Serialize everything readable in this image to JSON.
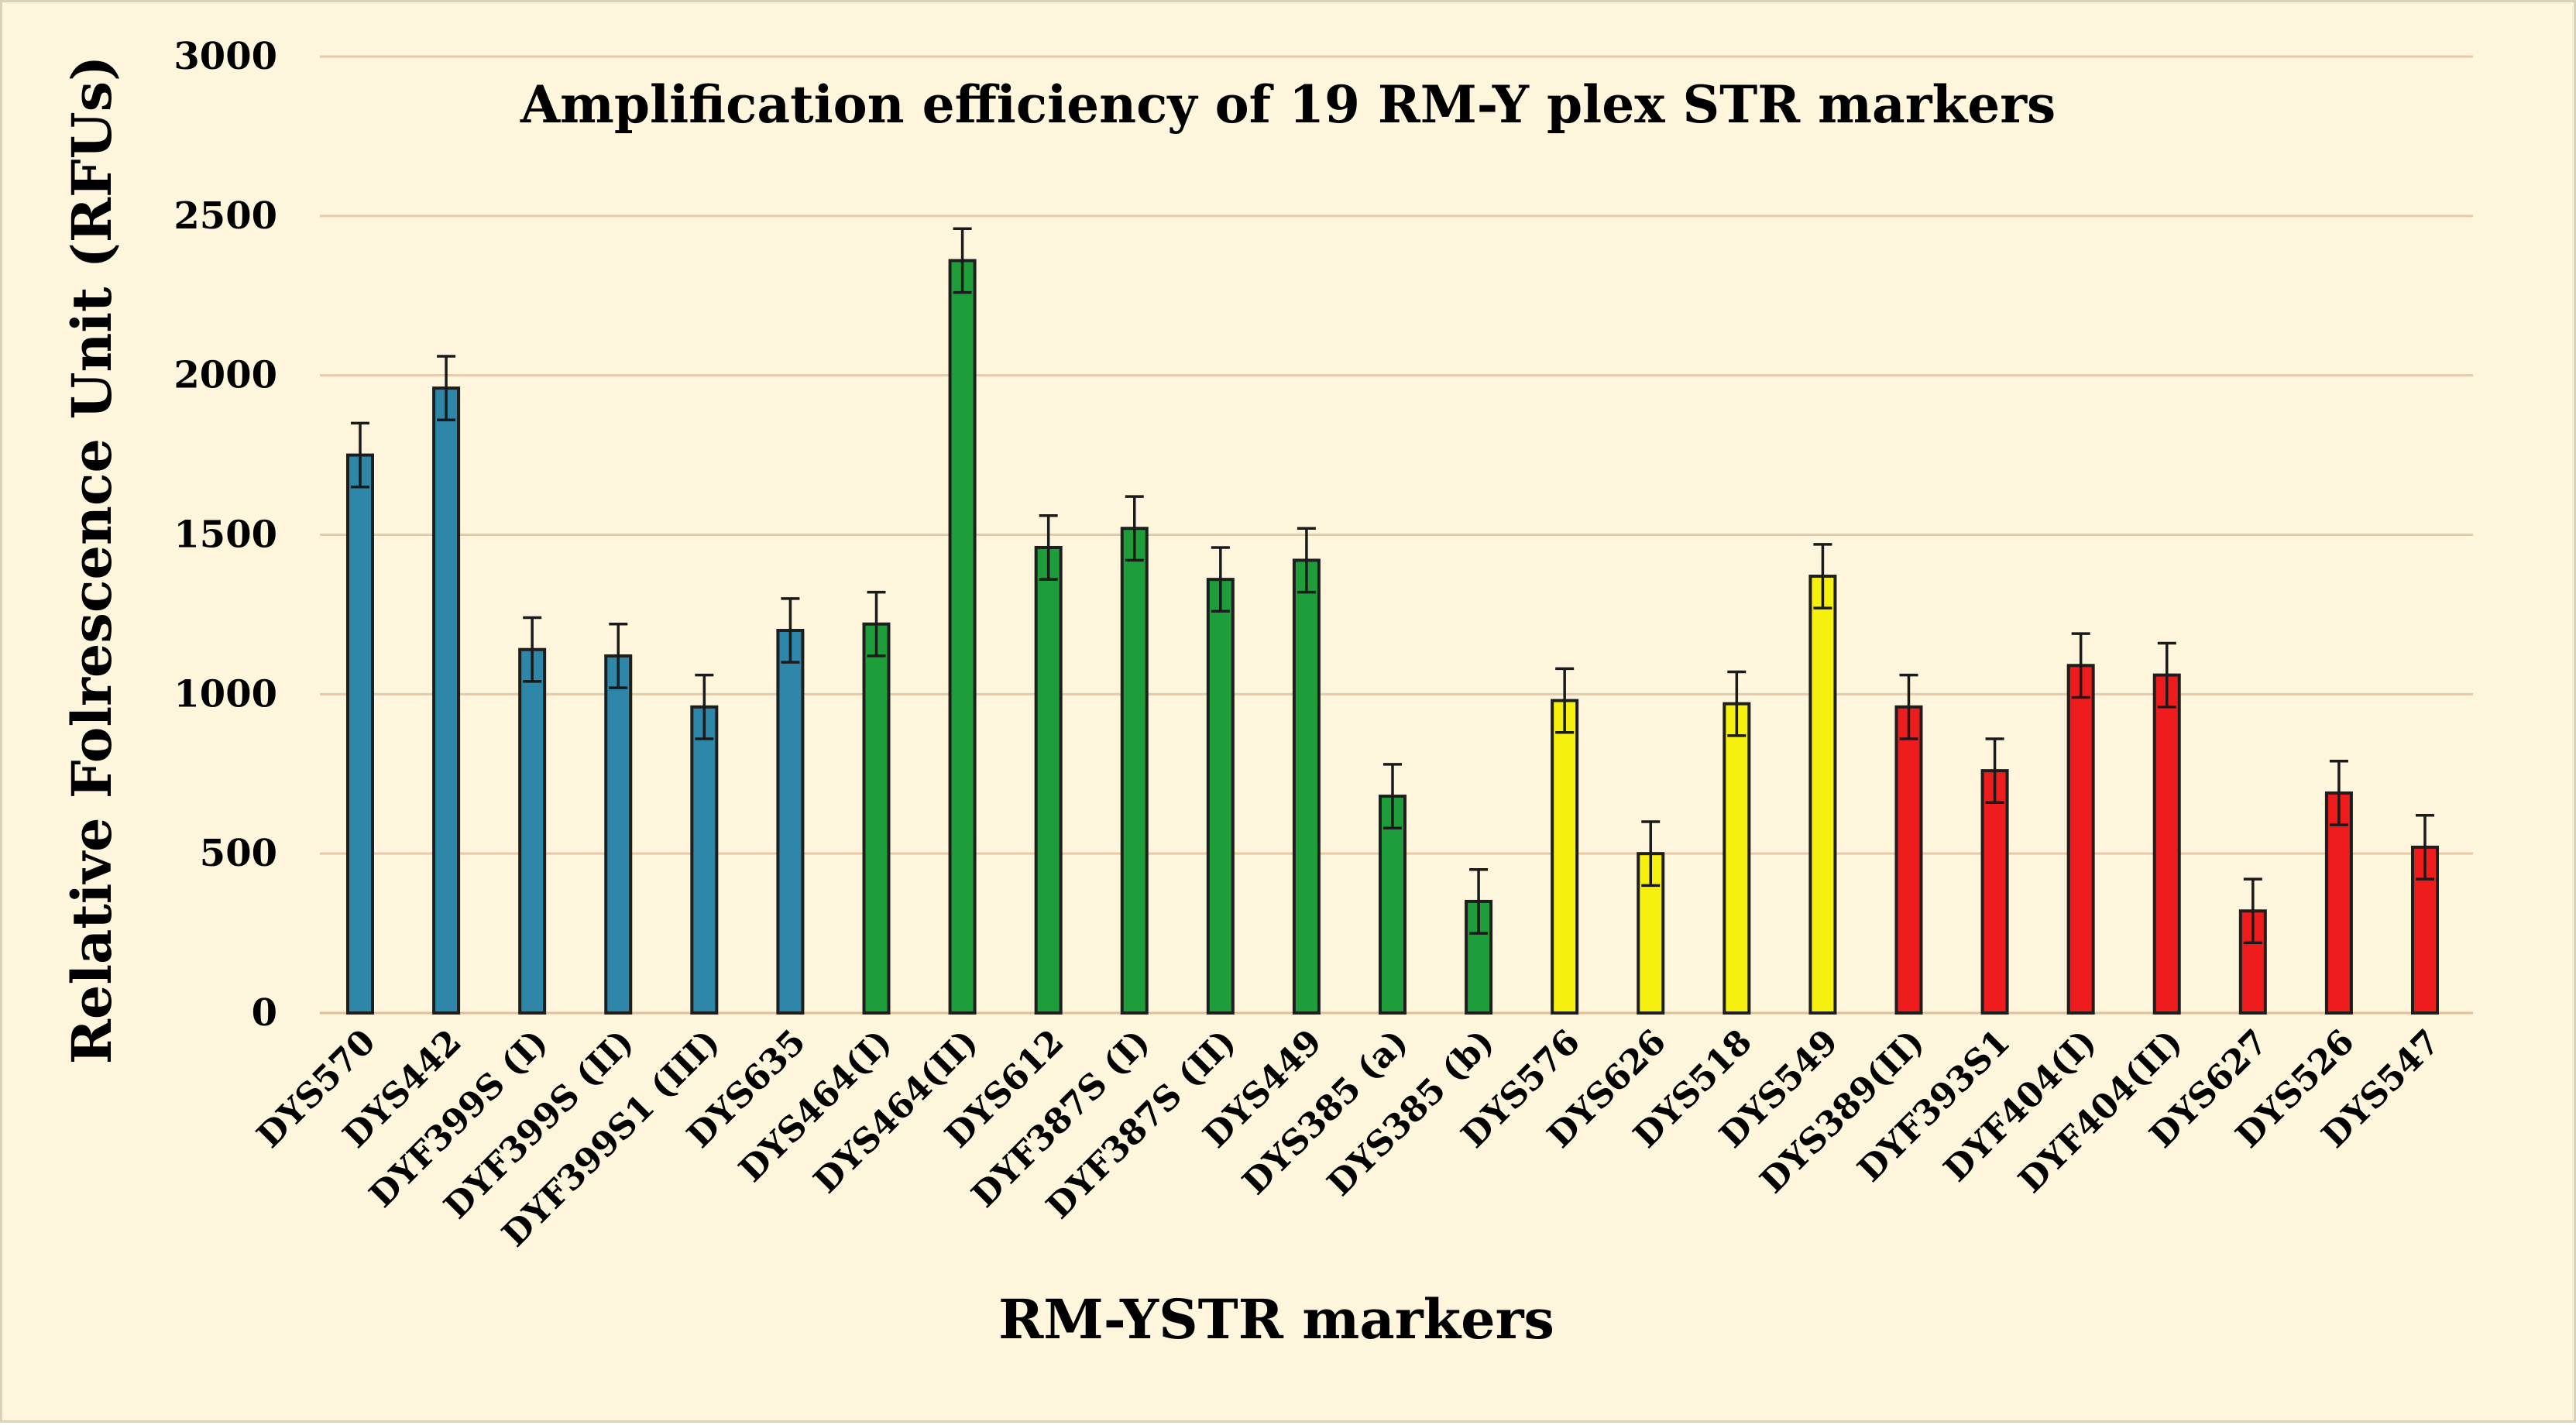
{
  "chart_data": {
    "type": "bar",
    "title": "Amplification efficiency of 19 RM-Y plex STR markers",
    "xlabel": "RM-YSTR markers",
    "ylabel": "Relative Folrescence Unit (RFUs)",
    "ylim": [
      0,
      3000
    ],
    "yticks": [
      0,
      500,
      1000,
      1500,
      2000,
      2500,
      3000
    ],
    "grid": true,
    "legend": "none",
    "categories": [
      "DYS570",
      "DYS442",
      "DYF399S (I)",
      "DYF399S (II)",
      "DYF399S1 (III)",
      "DYS635",
      "DYS464(I)",
      "DYS464(II)",
      "DYS612",
      "DYF387S (I)",
      "DYF387S (II)",
      "DYS449",
      "DYS385 (a)",
      "DYS385 (b)",
      "DYS576",
      "DYS626",
      "DYS518",
      "DYS549",
      "DYS389(II)",
      "DYF393S1",
      "DYF404(I)",
      "DYF404(II)",
      "DYS627",
      "DYS526",
      "DYS547"
    ],
    "values": [
      1750,
      1960,
      1140,
      1120,
      960,
      1200,
      1220,
      2360,
      1460,
      1520,
      1360,
      1420,
      680,
      350,
      980,
      500,
      970,
      1370,
      960,
      760,
      1090,
      1060,
      320,
      690,
      520
    ],
    "error": [
      100,
      100,
      100,
      100,
      100,
      100,
      100,
      100,
      100,
      100,
      100,
      100,
      100,
      100,
      100,
      100,
      100,
      100,
      100,
      100,
      100,
      100,
      100,
      100,
      100
    ],
    "colors": [
      "#2e86a8",
      "#2e86a8",
      "#2e86a8",
      "#2e86a8",
      "#2e86a8",
      "#2e86a8",
      "#1e9e3a",
      "#1e9e3a",
      "#1e9e3a",
      "#1e9e3a",
      "#1e9e3a",
      "#1e9e3a",
      "#1e9e3a",
      "#1e9e3a",
      "#f5f00e",
      "#f5f00e",
      "#f5f00e",
      "#f5f00e",
      "#ee1c1c",
      "#ee1c1c",
      "#ee1c1c",
      "#ee1c1c",
      "#ee1c1c",
      "#ee1c1c",
      "#ee1c1c"
    ]
  }
}
